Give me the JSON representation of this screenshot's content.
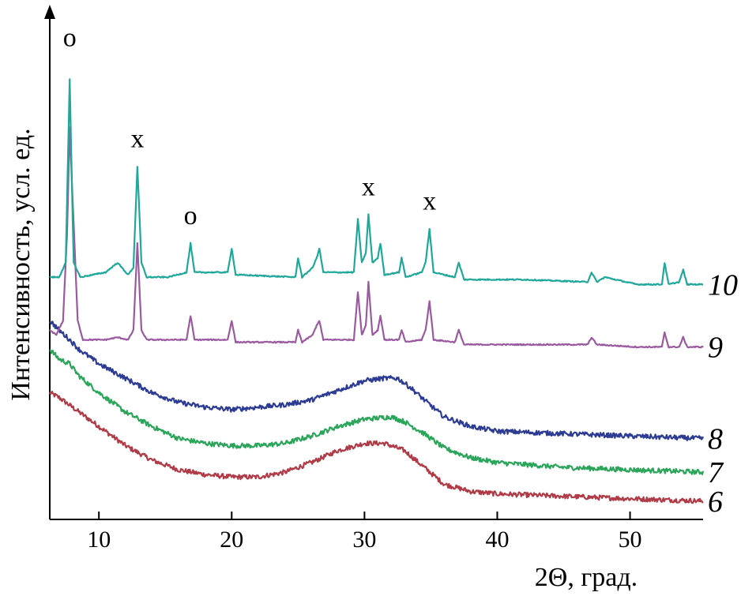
{
  "chart_data": {
    "type": "line",
    "xlabel": "2Θ, град.",
    "ylabel": "Интенсивность, усл. ед.",
    "xlim": [
      6.3,
      55.5
    ],
    "x_ticks": [
      10,
      20,
      30,
      40,
      50
    ],
    "x_tick_labels": [
      "10",
      "20",
      "30",
      "40",
      "50"
    ],
    "y_ticks_shown": false,
    "ylim": [
      0,
      100
    ],
    "grid": false,
    "legend": "curve numbers placed at right end of each curve",
    "series": [
      {
        "name": "10",
        "color": "#1fa89a",
        "points": [
          [
            6.3,
            49
          ],
          [
            7.0,
            49
          ],
          [
            7.5,
            52
          ],
          [
            7.8,
            90
          ],
          [
            8.1,
            52
          ],
          [
            8.6,
            49
          ],
          [
            10.5,
            50
          ],
          [
            11.4,
            52
          ],
          [
            12.2,
            49.5
          ],
          [
            12.6,
            51
          ],
          [
            12.9,
            72
          ],
          [
            13.2,
            52
          ],
          [
            13.6,
            49
          ],
          [
            15.2,
            49
          ],
          [
            16.6,
            50
          ],
          [
            16.9,
            56
          ],
          [
            17.2,
            50
          ],
          [
            19.7,
            50
          ],
          [
            20.0,
            55
          ],
          [
            20.3,
            49.5
          ],
          [
            24.8,
            49
          ],
          [
            25.0,
            53
          ],
          [
            25.3,
            49
          ],
          [
            26.1,
            51
          ],
          [
            26.4,
            53
          ],
          [
            26.6,
            55
          ],
          [
            26.9,
            50
          ],
          [
            29.2,
            50
          ],
          [
            29.5,
            61
          ],
          [
            29.8,
            52
          ],
          [
            30.1,
            54
          ],
          [
            30.3,
            62
          ],
          [
            30.6,
            52
          ],
          [
            31.0,
            53
          ],
          [
            31.2,
            56
          ],
          [
            31.5,
            49.5
          ],
          [
            32.6,
            50
          ],
          [
            32.8,
            53
          ],
          [
            33.1,
            49
          ],
          [
            34.3,
            50
          ],
          [
            34.6,
            52
          ],
          [
            34.9,
            59
          ],
          [
            35.2,
            50
          ],
          [
            36.8,
            49
          ],
          [
            37.1,
            52
          ],
          [
            37.5,
            48.5
          ],
          [
            39.5,
            48.5
          ],
          [
            42.0,
            48.5
          ],
          [
            46.8,
            48
          ],
          [
            47.1,
            50
          ],
          [
            47.5,
            48
          ],
          [
            48.1,
            49
          ],
          [
            50.5,
            47.5
          ],
          [
            52.4,
            47.5
          ],
          [
            52.6,
            52
          ],
          [
            52.9,
            47.5
          ],
          [
            53.7,
            48
          ],
          [
            54.0,
            50.5
          ],
          [
            54.3,
            47.5
          ],
          [
            55.5,
            47.5
          ]
        ]
      },
      {
        "name": "9",
        "color": "#9a5aa0",
        "points": [
          [
            6.3,
            38
          ],
          [
            6.8,
            37
          ],
          [
            7.3,
            40
          ],
          [
            7.6,
            58
          ],
          [
            7.8,
            80
          ],
          [
            8.1,
            60
          ],
          [
            8.4,
            40
          ],
          [
            8.8,
            36
          ],
          [
            10.5,
            36
          ],
          [
            11.4,
            36.5
          ],
          [
            12.2,
            36
          ],
          [
            12.6,
            38
          ],
          [
            12.9,
            56
          ],
          [
            13.2,
            38
          ],
          [
            13.6,
            36
          ],
          [
            16.6,
            36
          ],
          [
            16.9,
            41
          ],
          [
            17.2,
            36
          ],
          [
            19.7,
            36
          ],
          [
            20.0,
            40
          ],
          [
            20.3,
            35.5
          ],
          [
            24.8,
            35.5
          ],
          [
            25.0,
            38
          ],
          [
            25.3,
            35.5
          ],
          [
            26.1,
            37
          ],
          [
            26.4,
            39
          ],
          [
            26.6,
            40
          ],
          [
            26.9,
            36
          ],
          [
            29.2,
            36
          ],
          [
            29.5,
            46
          ],
          [
            29.8,
            37
          ],
          [
            30.1,
            39
          ],
          [
            30.3,
            48
          ],
          [
            30.6,
            37
          ],
          [
            31.0,
            38
          ],
          [
            31.2,
            41
          ],
          [
            31.5,
            36
          ],
          [
            32.6,
            36
          ],
          [
            32.8,
            38
          ],
          [
            33.1,
            35.5
          ],
          [
            34.3,
            36
          ],
          [
            34.6,
            38
          ],
          [
            34.9,
            44
          ],
          [
            35.2,
            36
          ],
          [
            36.8,
            35.5
          ],
          [
            37.1,
            38
          ],
          [
            37.5,
            35
          ],
          [
            42.0,
            35
          ],
          [
            46.8,
            35
          ],
          [
            47.1,
            36.5
          ],
          [
            47.5,
            35
          ],
          [
            50.5,
            34.5
          ],
          [
            52.4,
            34.5
          ],
          [
            52.6,
            37.5
          ],
          [
            52.9,
            34.5
          ],
          [
            53.7,
            34.5
          ],
          [
            54.0,
            36.5
          ],
          [
            54.3,
            34.5
          ],
          [
            55.5,
            34.5
          ]
        ]
      },
      {
        "name": "8",
        "color": "#2c3b94",
        "points": [
          [
            6.3,
            40
          ],
          [
            7.0,
            38
          ],
          [
            7.8,
            36
          ],
          [
            8.5,
            34
          ],
          [
            10,
            31
          ],
          [
            12,
            28
          ],
          [
            14,
            25
          ],
          [
            16,
            23
          ],
          [
            18,
            22
          ],
          [
            20,
            21.5
          ],
          [
            22,
            22
          ],
          [
            24,
            22.5
          ],
          [
            26,
            23.5
          ],
          [
            28,
            25.5
          ],
          [
            30,
            27.5
          ],
          [
            31.5,
            28
          ],
          [
            32.5,
            28
          ],
          [
            33.5,
            26
          ],
          [
            34.5,
            23.5
          ],
          [
            36,
            20
          ],
          [
            38,
            18
          ],
          [
            40,
            17
          ],
          [
            45,
            16.5
          ],
          [
            50,
            16
          ],
          [
            55.5,
            15.5
          ]
        ]
      },
      {
        "name": "7",
        "color": "#2aa55a",
        "points": [
          [
            6.3,
            34
          ],
          [
            7.0,
            32
          ],
          [
            7.8,
            31
          ],
          [
            8.5,
            28.5
          ],
          [
            10,
            25
          ],
          [
            12,
            21
          ],
          [
            14,
            18
          ],
          [
            16,
            15.5
          ],
          [
            18,
            14.5
          ],
          [
            20,
            14
          ],
          [
            22,
            14
          ],
          [
            24,
            14.5
          ],
          [
            26,
            16
          ],
          [
            28,
            18
          ],
          [
            30,
            19.5
          ],
          [
            32,
            20
          ],
          [
            33,
            19
          ],
          [
            34.5,
            16.5
          ],
          [
            36,
            13.5
          ],
          [
            38,
            11.5
          ],
          [
            40,
            10.5
          ],
          [
            45,
            9.5
          ],
          [
            50,
            9
          ],
          [
            55.5,
            8.5
          ]
        ]
      },
      {
        "name": "6",
        "color": "#b03a45",
        "points": [
          [
            6.3,
            25
          ],
          [
            7.0,
            24
          ],
          [
            8,
            22
          ],
          [
            10,
            18
          ],
          [
            12,
            14
          ],
          [
            14,
            11
          ],
          [
            16,
            9
          ],
          [
            18,
            8
          ],
          [
            20,
            7.5
          ],
          [
            22,
            7.5
          ],
          [
            24,
            8.5
          ],
          [
            26,
            10.5
          ],
          [
            28,
            13
          ],
          [
            30,
            14.5
          ],
          [
            31.5,
            14.5
          ],
          [
            33,
            13
          ],
          [
            34.5,
            9.5
          ],
          [
            36,
            6
          ],
          [
            38,
            4.5
          ],
          [
            40,
            4
          ],
          [
            45,
            3.5
          ],
          [
            50,
            3
          ],
          [
            55.5,
            2.5
          ]
        ]
      }
    ],
    "labels": [
      "10",
      "9",
      "8",
      "7",
      "6"
    ],
    "peak_markers": [
      {
        "text": "о",
        "x": 7.8,
        "y": 97
      },
      {
        "text": "х",
        "x": 12.9,
        "y": 76
      },
      {
        "text": "о",
        "x": 16.9,
        "y": 60
      },
      {
        "text": "х",
        "x": 30.3,
        "y": 66
      },
      {
        "text": "х",
        "x": 34.9,
        "y": 63
      }
    ]
  }
}
